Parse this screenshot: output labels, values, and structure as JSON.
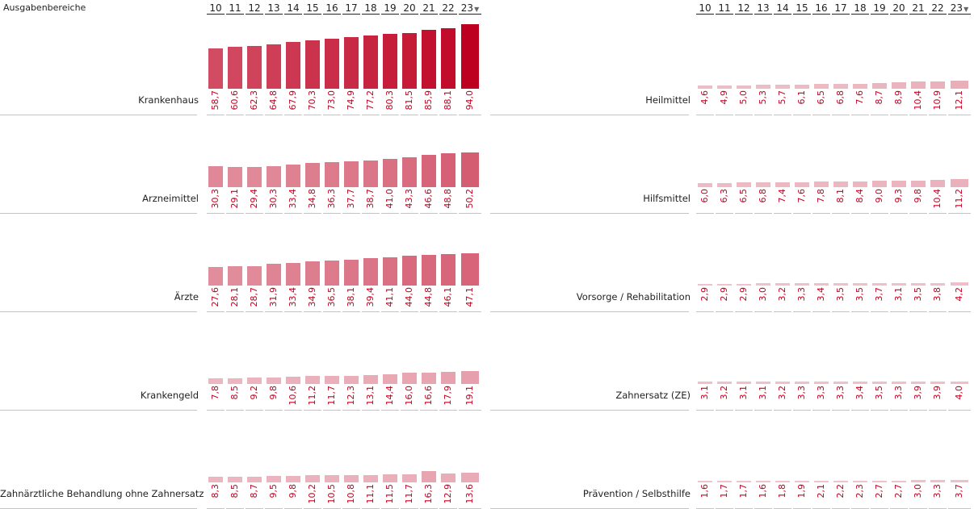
{
  "chart_data": {
    "type": "bar",
    "title": "Ausgabenbereiche",
    "years": [
      "10",
      "11",
      "12",
      "13",
      "14",
      "15",
      "16",
      "17",
      "18",
      "19",
      "20",
      "21",
      "22",
      "23"
    ],
    "colors": {
      "low": "#f0c8d0",
      "high": "#be0020",
      "value_text": "#c8001e"
    },
    "series": [
      {
        "name": "Krankenhaus",
        "panel": "left",
        "values": [
          "58,7",
          "60,6",
          "62,3",
          "64,8",
          "67,9",
          "70,3",
          "73,0",
          "74,9",
          "77,2",
          "80,3",
          "81,5",
          "85,9",
          "88,1",
          "94,0"
        ]
      },
      {
        "name": "Arzneimittel",
        "panel": "left",
        "values": [
          "30,3",
          "29,1",
          "29,4",
          "30,3",
          "33,4",
          "34,8",
          "36,3",
          "37,7",
          "38,7",
          "41,0",
          "43,3",
          "46,6",
          "48,8",
          "50,2"
        ]
      },
      {
        "name": "Ärzte",
        "panel": "left",
        "values": [
          "27,6",
          "28,1",
          "28,7",
          "31,9",
          "33,4",
          "34,9",
          "36,5",
          "38,1",
          "39,4",
          "41,1",
          "44,0",
          "44,8",
          "46,1",
          "47,1"
        ]
      },
      {
        "name": "Krankengeld",
        "panel": "left",
        "values": [
          "7,8",
          "8,5",
          "9,2",
          "9,8",
          "10,6",
          "11,2",
          "11,7",
          "12,3",
          "13,1",
          "14,4",
          "16,0",
          "16,6",
          "17,9",
          "19,1"
        ]
      },
      {
        "name": "Zahnärztliche Behandlung ohne Zahnersatz",
        "panel": "left",
        "values": [
          "8,3",
          "8,5",
          "8,7",
          "9,5",
          "9,8",
          "10,2",
          "10,5",
          "10,8",
          "11,1",
          "11,5",
          "11,7",
          "16,3",
          "12,9",
          "13,6"
        ]
      },
      {
        "name": "Heilmittel",
        "panel": "right",
        "values": [
          "4,6",
          "4,9",
          "5,0",
          "5,3",
          "5,7",
          "6,1",
          "6,5",
          "6,8",
          "7,6",
          "8,7",
          "8,9",
          "10,4",
          "10,9",
          "12,1"
        ]
      },
      {
        "name": "Hilfsmittel",
        "panel": "right",
        "values": [
          "6,0",
          "6,3",
          "6,5",
          "6,8",
          "7,4",
          "7,6",
          "7,8",
          "8,1",
          "8,4",
          "9,0",
          "9,3",
          "9,8",
          "10,4",
          "11,2"
        ]
      },
      {
        "name": "Vorsorge / Rehabilitation",
        "panel": "right",
        "values": [
          "2,9",
          "2,9",
          "2,9",
          "3,0",
          "3,2",
          "3,3",
          "3,4",
          "3,5",
          "3,5",
          "3,7",
          "3,1",
          "3,5",
          "3,8",
          "4,2"
        ]
      },
      {
        "name": "Zahnersatz (ZE)",
        "panel": "right",
        "values": [
          "3,1",
          "3,2",
          "3,1",
          "3,1",
          "3,2",
          "3,3",
          "3,3",
          "3,3",
          "3,4",
          "3,5",
          "3,3",
          "3,9",
          "3,9",
          "4,0"
        ]
      },
      {
        "name": "Prävention / Selbsthilfe",
        "panel": "right",
        "values": [
          "1,6",
          "1,7",
          "1,7",
          "1,6",
          "1,8",
          "1,9",
          "2,1",
          "2,2",
          "2,3",
          "2,7",
          "2,7",
          "3,0",
          "3,3",
          "3,7"
        ]
      }
    ],
    "ylim": [
      0,
      94
    ]
  }
}
